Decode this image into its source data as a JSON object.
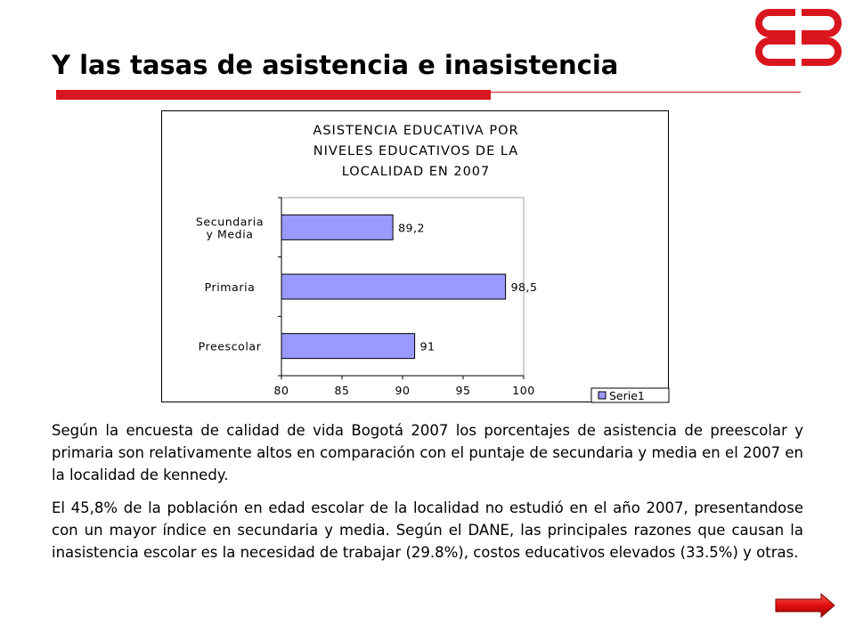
{
  "slide": {
    "title": "Y las tasas de asistencia e inasistencia",
    "accent_color": "#d9161e",
    "logo_icon": "interlocked-ring-logo"
  },
  "chart_data": {
    "type": "bar",
    "orientation": "horizontal",
    "title_lines": [
      "ASISTENCIA EDUCATIVA POR",
      "NIVELES EDUCATIVOS DE LA",
      "LOCALIDAD EN 2007"
    ],
    "categories": [
      {
        "label_lines": [
          "Secundaria",
          "y Media"
        ],
        "value": 89.2,
        "value_label": "89,2"
      },
      {
        "label_lines": [
          "Primaria"
        ],
        "value": 98.5,
        "value_label": "98,5"
      },
      {
        "label_lines": [
          "Preescolar"
        ],
        "value": 91,
        "value_label": "91"
      }
    ],
    "series": [
      {
        "name": "Serie1",
        "color": "#9999ff"
      }
    ],
    "xlim": [
      80,
      100
    ],
    "xticks": [
      80,
      85,
      90,
      95,
      100
    ],
    "grid": false,
    "legend": "bottom-right"
  },
  "paragraphs": [
    "Según la encuesta de calidad de vida Bogotá 2007 los porcentajes de asistencia de preescolar y primaria son relativamente altos en comparación con el puntaje de secundaria y media en el 2007 en la localidad de kennedy.",
    "El 45,8% de la población en edad escolar de la localidad no estudió en el año 2007, presentandose con un mayor índice en secundaria y media. Según el DANE, las principales razones que causan la inasistencia escolar es la necesidad de trabajar (29.8%), costos educativos elevados (33.5%) y otras."
  ],
  "navigation": {
    "next_icon": "next-arrow-icon"
  }
}
